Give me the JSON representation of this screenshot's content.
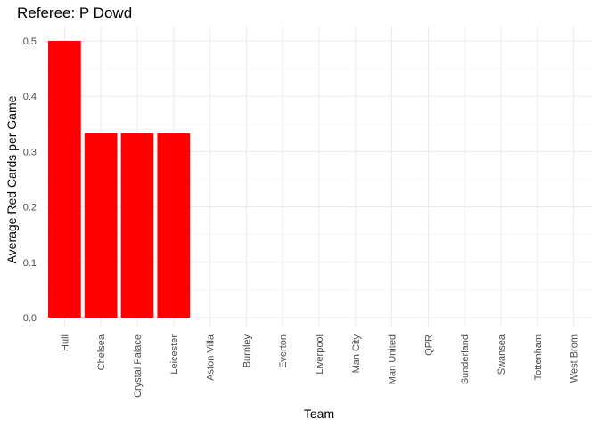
{
  "chart_data": {
    "type": "bar",
    "title": "Referee: P Dowd",
    "xlabel": "Team",
    "ylabel": "Average Red Cards per Game",
    "categories": [
      "Hull",
      "Chelsea",
      "Crystal Palace",
      "Leicester",
      "Aston Villa",
      "Burnley",
      "Everton",
      "Liverpool",
      "Man City",
      "Man United",
      "QPR",
      "Sunderland",
      "Swansea",
      "Tottenham",
      "West Brom"
    ],
    "values": [
      0.5,
      0.3333,
      0.3333,
      0.3333,
      0,
      0,
      0,
      0,
      0,
      0,
      0,
      0,
      0,
      0,
      0
    ],
    "ylim": [
      0,
      0.5
    ],
    "yticks": [
      "0.0",
      "0.1",
      "0.2",
      "0.3",
      "0.4",
      "0.5"
    ],
    "bar_color": "#ff0000",
    "grid": true
  }
}
